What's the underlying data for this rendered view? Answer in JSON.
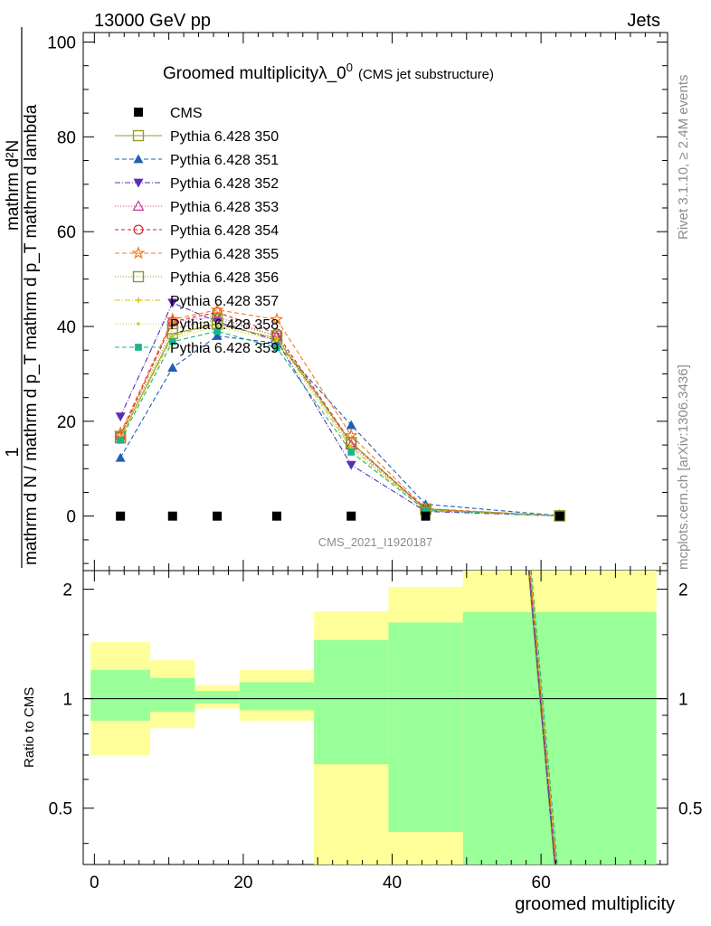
{
  "header": {
    "left": "13000 GeV pp",
    "right": "Jets"
  },
  "side_labels": {
    "rivet": "Rivet 3.1.10, ≥ 2.4M events",
    "mcplots": "mcplots.cern.ch [arXiv:1306.3436]"
  },
  "chart_data": [
    {
      "type": "line",
      "title_main": "Groomed multiplicityλ_0",
      "title_sup": "0",
      "title_note": "(CMS jet substructure)",
      "watermark": "CMS_2021_I1920187",
      "ylabel_num": "1",
      "ylabel_den": "mathrm d N / mathrm d p_T mathrm d p_T mathrm d lambda",
      "ylabel_top": "mathrm d²N",
      "xlim": [
        -1.5,
        77
      ],
      "ylim": [
        -11.5,
        102
      ],
      "yticks": [
        0,
        20,
        40,
        60,
        80,
        100
      ],
      "x": [
        3.5,
        10.5,
        16.5,
        24.5,
        34.5,
        44.5,
        62.5
      ],
      "cms": {
        "name": "CMS",
        "values": [
          0,
          0,
          0,
          0,
          0,
          0,
          0
        ]
      },
      "series": [
        {
          "name": "Pythia 6.428 350",
          "color": "#9a9a2a",
          "dash": "",
          "marker": "square-open",
          "values": [
            16.5,
            38.5,
            40.5,
            37.5,
            15.5,
            1.4,
            0.05
          ]
        },
        {
          "name": "Pythia 6.428 351",
          "color": "#1f5fb5",
          "dash": "5,3",
          "marker": "triangle-up",
          "values": [
            12.3,
            31.3,
            38.0,
            36.5,
            19.2,
            2.5,
            0.1
          ]
        },
        {
          "name": "Pythia 6.428 352",
          "color": "#5a2db5",
          "dash": "6,2,1,2",
          "marker": "triangle-down",
          "values": [
            21.0,
            45.0,
            41.0,
            37.0,
            10.8,
            1.0,
            0.03
          ]
        },
        {
          "name": "Pythia 6.428 353",
          "color": "#c0409a",
          "dash": "1,2",
          "marker": "triangle-open",
          "values": [
            17.0,
            41.0,
            42.0,
            38.0,
            15.0,
            1.5,
            0.05
          ]
        },
        {
          "name": "Pythia 6.428 354",
          "color": "#d81e1e",
          "dash": "4,3",
          "marker": "circle-open",
          "values": [
            17.0,
            41.0,
            43.0,
            38.5,
            15.5,
            1.5,
            0.05
          ]
        },
        {
          "name": "Pythia 6.428 355",
          "color": "#f07820",
          "dash": "5,3",
          "marker": "star-open",
          "values": [
            17.5,
            41.5,
            43.5,
            41.5,
            17.0,
            1.6,
            0.05
          ]
        },
        {
          "name": "Pythia 6.428 356",
          "color": "#8a9a2a",
          "dash": "1,2",
          "marker": "square-open",
          "values": [
            16.8,
            39.5,
            41.5,
            38.0,
            15.5,
            1.5,
            0.05
          ]
        },
        {
          "name": "Pythia 6.428 357",
          "color": "#d6c21a",
          "dash": "6,2,1,2",
          "marker": "cross",
          "values": [
            16.5,
            38.0,
            40.5,
            37.5,
            14.5,
            1.3,
            0.04
          ]
        },
        {
          "name": "Pythia 6.428 358",
          "color": "#c4d41a",
          "dash": "1,2",
          "marker": "dot",
          "values": [
            16.5,
            37.5,
            40.0,
            37.0,
            14.0,
            1.3,
            0.04
          ]
        },
        {
          "name": "Pythia 6.428 359",
          "color": "#1ab58a",
          "dash": "5,3",
          "marker": "square",
          "values": [
            16.0,
            36.8,
            39.0,
            35.5,
            13.5,
            1.2,
            0.04
          ]
        }
      ]
    },
    {
      "type": "area",
      "ylabel": "Ratio to CMS",
      "xlabel": "groomed multiplicity",
      "xlim": [
        -1.5,
        77
      ],
      "ylim": [
        0.35,
        2.25
      ],
      "yticks": [
        0.5,
        1,
        2
      ],
      "xticks": [
        0,
        20,
        40,
        60
      ],
      "bands": [
        {
          "x0": -0.5,
          "x1": 7.5,
          "y_lo": 0.7,
          "y_hi": 1.43,
          "g_lo": 0.87,
          "g_hi": 1.2
        },
        {
          "x0": 7.5,
          "x1": 13.5,
          "y_lo": 0.83,
          "y_hi": 1.28,
          "g_lo": 0.92,
          "g_hi": 1.14
        },
        {
          "x0": 13.5,
          "x1": 19.5,
          "y_lo": 0.94,
          "y_hi": 1.09,
          "g_lo": 0.97,
          "g_hi": 1.05
        },
        {
          "x0": 19.5,
          "x1": 29.5,
          "y_lo": 0.87,
          "y_hi": 1.2,
          "g_lo": 0.93,
          "g_hi": 1.11
        },
        {
          "x0": 29.5,
          "x1": 39.5,
          "y_lo": 0.35,
          "y_hi": 1.74,
          "g_lo": 0.35,
          "g_hi": 1.45
        },
        {
          "x0": 39.5,
          "x1": 49.5,
          "y_lo": 0.35,
          "y_hi": 2.03,
          "g_lo": 0.35,
          "g_hi": 1.62
        },
        {
          "x0": 49.5,
          "x1": 75.5,
          "y_lo": 0.35,
          "y_hi": 2.25,
          "g_lo": 0.35,
          "g_hi": 1.73
        }
      ],
      "yellow_notch": [
        {
          "x0": 29.5,
          "x1": 39.5,
          "y_lo": 0.35,
          "y_hi": 0.66
        },
        {
          "x0": 39.5,
          "x1": 49.5,
          "y_lo": 0.35,
          "y_hi": 0.43
        }
      ],
      "mc_line_x": [
        58.5,
        62.0
      ],
      "yellow": "#ffff99",
      "green": "#99ff99"
    }
  ]
}
